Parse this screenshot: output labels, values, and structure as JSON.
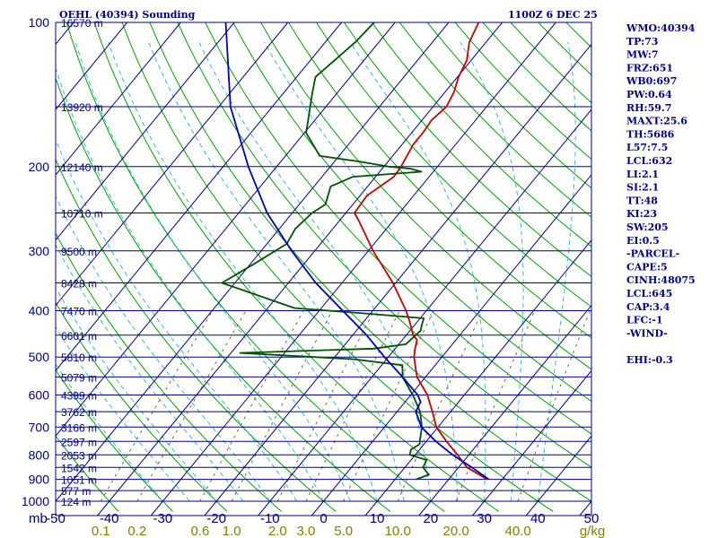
{
  "header": {
    "title": "OEHL (40394) Sounding",
    "time": "1100Z  6 DEC 25"
  },
  "colors": {
    "frame": "#000080",
    "isobar": "#000080",
    "isotherm": "#000080",
    "dry_adiabat": "#00a000",
    "moist_adiabat": "#38b8d8",
    "mixing_ratio": "#706850",
    "temperature": "#c00000",
    "dewpoint": "#005000",
    "parcel": "#0000b0",
    "mixing_ratio_label": "#808000"
  },
  "indices": [
    "WMO:40394",
    "TP:73",
    "MW:7",
    "FRZ:651",
    "WB0:697",
    "PW:0.64",
    "RH:59.7",
    "MAXT:25.6",
    "TH:5686",
    "L57:7.5",
    "LCL:632",
    "LI:2.1",
    "SI:2.1",
    "TT:48",
    "KI:23",
    "SW:205",
    "EI:0.5",
    "-PARCEL-",
    "CAPE:5",
    "CINH:48075",
    "LCL:645",
    "CAP:3.4",
    "LFC:-1",
    "-WIND-",
    "",
    "EHI:-0.3"
  ],
  "chart_data": {
    "type": "line",
    "subtype": "skew-T log-P sounding diagram",
    "pressure_axis": {
      "label": "mb",
      "scale": "log",
      "range": [
        1000,
        100
      ],
      "tick_labels": [
        "100",
        "200",
        "300",
        "400",
        "500",
        "600",
        "700",
        "800",
        "900",
        "1000"
      ]
    },
    "temperature_axis": {
      "range": [
        -50,
        50
      ],
      "tick_labels": [
        "-50",
        "-40",
        "-30",
        "-20",
        "-10",
        "0",
        "10",
        "20",
        "30",
        "40",
        "50"
      ],
      "unit": "C"
    },
    "mixing_ratio_axis": {
      "unit": "g/kg",
      "tick_labels": [
        "0.1",
        "0.2",
        "0.6",
        "1.0",
        "2.0",
        "3.0",
        "5.0",
        "10.0",
        "20.0",
        "40.0"
      ]
    },
    "height_levels": [
      {
        "label": "16570 m",
        "p": 100
      },
      {
        "label": "13920 m",
        "p": 150
      },
      {
        "label": "12140 m",
        "p": 200
      },
      {
        "label": "10710 m",
        "p": 250
      },
      {
        "label": "9500 m",
        "p": 300
      },
      {
        "label": "8428 m",
        "p": 350
      },
      {
        "label": "7470 m",
        "p": 400
      },
      {
        "label": "6601 m",
        "p": 450
      },
      {
        "label": "5810 m",
        "p": 500
      },
      {
        "label": "5079 m",
        "p": 550
      },
      {
        "label": "4399 m",
        "p": 600
      },
      {
        "label": "3762 m",
        "p": 650
      },
      {
        "label": "3166 m",
        "p": 700
      },
      {
        "label": "2597 m",
        "p": 750
      },
      {
        "label": "2053 m",
        "p": 800
      },
      {
        "label": "1542 m",
        "p": 850
      },
      {
        "label": "1051 m",
        "p": 900
      },
      {
        "label": "577 m",
        "p": 950
      },
      {
        "label": "124 m",
        "p": 1000
      }
    ],
    "series": [
      {
        "name": "temperature",
        "points": [
          [
            900,
            27.2
          ],
          [
            850,
            21.6
          ],
          [
            800,
            17.9
          ],
          [
            750,
            13.8
          ],
          [
            700,
            9.7
          ],
          [
            650,
            6.6
          ],
          [
            600,
            3.1
          ],
          [
            550,
            -1.6
          ],
          [
            500,
            -5.2
          ],
          [
            480,
            -6.3
          ],
          [
            460,
            -7.3
          ],
          [
            450,
            -8.7
          ],
          [
            420,
            -11.6
          ],
          [
            400,
            -13.8
          ],
          [
            350,
            -20.5
          ],
          [
            300,
            -29.1
          ],
          [
            260,
            -36.3
          ],
          [
            250,
            -38.4
          ],
          [
            230,
            -38.7
          ],
          [
            210,
            -36.6
          ],
          [
            200,
            -36.8
          ],
          [
            180,
            -37.9
          ],
          [
            170,
            -37.9
          ],
          [
            160,
            -38.2
          ],
          [
            150,
            -37.5
          ],
          [
            140,
            -38.3
          ],
          [
            130,
            -39.8
          ],
          [
            120,
            -40.8
          ],
          [
            110,
            -43.1
          ],
          [
            100,
            -44.4
          ]
        ]
      },
      {
        "name": "dewpoint",
        "points": [
          [
            900,
            13.9
          ],
          [
            880,
            15.6
          ],
          [
            850,
            13.4
          ],
          [
            820,
            12.9
          ],
          [
            800,
            9.0
          ],
          [
            780,
            8.4
          ],
          [
            760,
            9.2
          ],
          [
            750,
            8.8
          ],
          [
            700,
            7.0
          ],
          [
            650,
            4.3
          ],
          [
            600,
            0.4
          ],
          [
            550,
            -4.3
          ],
          [
            520,
            -6.1
          ],
          [
            505,
            -16.1
          ],
          [
            490,
            -38.3
          ],
          [
            480,
            -14.0
          ],
          [
            470,
            -8.7
          ],
          [
            440,
            -8.0
          ],
          [
            430,
            -8.6
          ],
          [
            415,
            -9.3
          ],
          [
            405,
            -21.4
          ],
          [
            395,
            -35.0
          ],
          [
            350,
            -52.4
          ],
          [
            320,
            -49.4
          ],
          [
            290,
            -46.3
          ],
          [
            270,
            -47.0
          ],
          [
            250,
            -46.3
          ],
          [
            240,
            -45.1
          ],
          [
            220,
            -46.9
          ],
          [
            210,
            -44.2
          ],
          [
            205,
            -32.2
          ],
          [
            202,
            -34.7
          ],
          [
            200,
            -39.1
          ],
          [
            195,
            -45.7
          ],
          [
            190,
            -53.6
          ],
          [
            170,
            -59.7
          ],
          [
            140,
            -64.7
          ],
          [
            130,
            -66.5
          ],
          [
            110,
            -64.4
          ],
          [
            100,
            -63.9
          ]
        ]
      },
      {
        "name": "parcel",
        "points": [
          [
            900,
            27.5
          ],
          [
            850,
            22.5
          ],
          [
            800,
            17.0
          ],
          [
            750,
            11.8
          ],
          [
            700,
            6.9
          ],
          [
            650,
            3.5
          ],
          [
            620,
            2.9
          ],
          [
            600,
            1.3
          ],
          [
            550,
            -4.3
          ],
          [
            500,
            -10.7
          ],
          [
            450,
            -17.4
          ],
          [
            400,
            -25.6
          ],
          [
            350,
            -34.9
          ],
          [
            300,
            -44.3
          ],
          [
            250,
            -54.7
          ],
          [
            200,
            -65.3
          ],
          [
            150,
            -77.8
          ],
          [
            100,
            -91.6
          ]
        ]
      }
    ],
    "grid": true
  }
}
